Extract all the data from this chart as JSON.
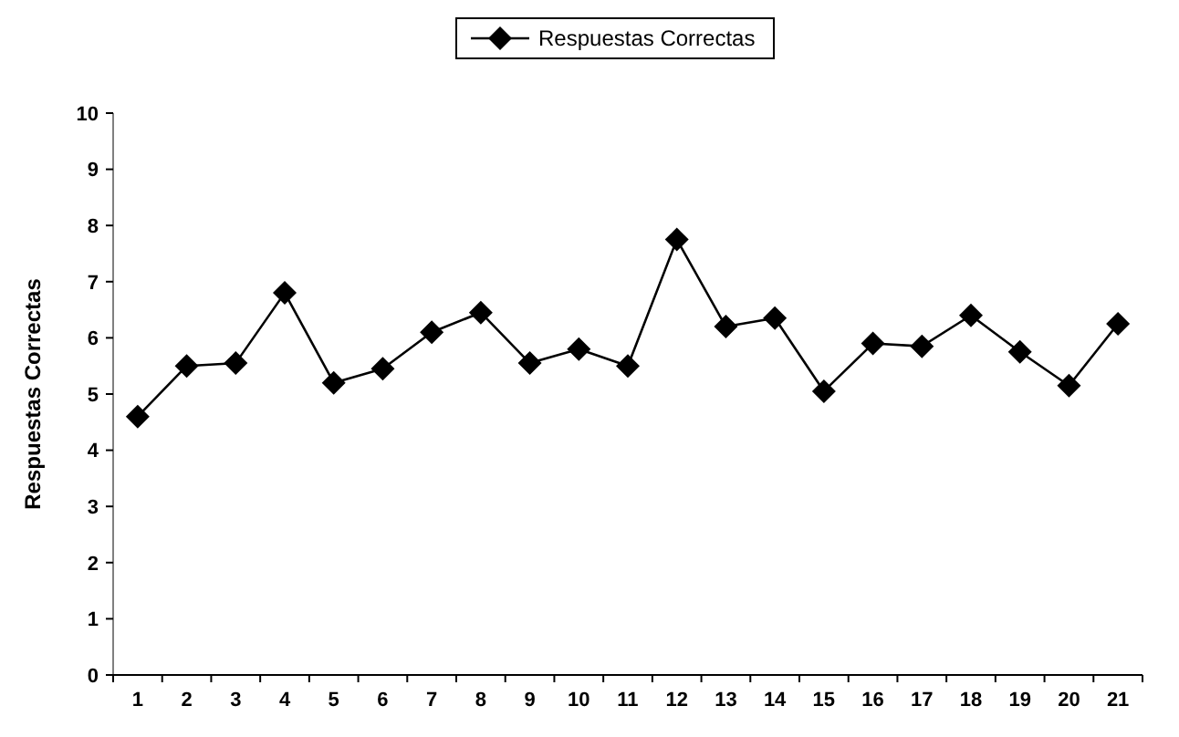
{
  "chart_data": {
    "type": "line",
    "ylabel": "Respuestas Correctas",
    "categories": [
      "1",
      "2",
      "3",
      "4",
      "5",
      "6",
      "7",
      "8",
      "9",
      "10",
      "11",
      "12",
      "13",
      "14",
      "15",
      "16",
      "17",
      "18",
      "19",
      "20",
      "21"
    ],
    "series": [
      {
        "name": "Respuestas Correctas",
        "color": "#000000",
        "values": [
          4.6,
          5.5,
          5.55,
          6.8,
          5.2,
          5.45,
          6.1,
          6.45,
          5.55,
          5.8,
          5.5,
          7.75,
          6.2,
          6.35,
          5.05,
          5.9,
          5.85,
          6.4,
          5.75,
          5.15,
          6.25
        ]
      }
    ],
    "ylim": [
      0,
      10
    ],
    "yticks": [
      0,
      1,
      2,
      3,
      4,
      5,
      6,
      7,
      8,
      9,
      10
    ],
    "legend": "top",
    "marker": "diamond",
    "grid": false
  }
}
